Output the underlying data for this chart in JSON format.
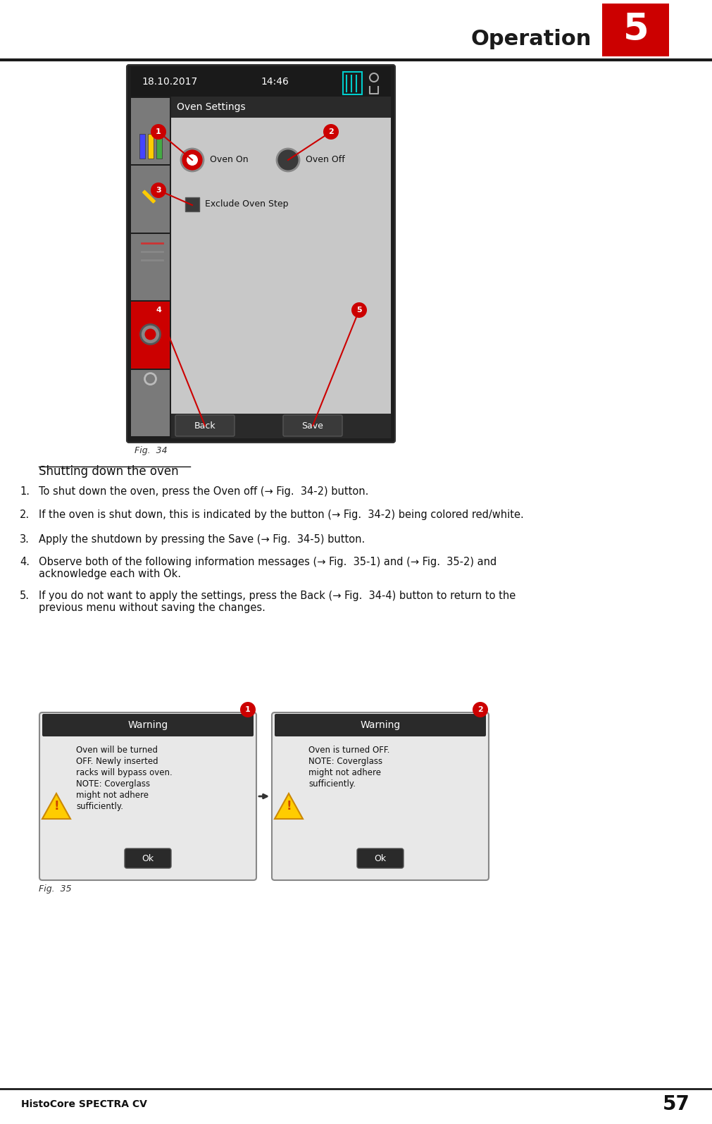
{
  "page_bg": "#ffffff",
  "header_text": "Operation",
  "header_num": "5",
  "header_bg": "#cc0000",
  "header_line_color": "#1a1a1a",
  "footer_text": "HistoCore SPECTRA CV",
  "footer_num": "57",
  "fig34_label": "Fig.  34",
  "fig35_label": "Fig.  35",
  "section_title": "Shutting down the oven",
  "steps": [
    "To shut down the oven, press the ⁠Oven off⁠ (→ Fig.  34-2) button.",
    "If the oven is shut down, this is indicated by the button (→ Fig.  34-2) being colored red/white.",
    "Apply the shutdown by pressing the ⁠Save⁠ (→ Fig.  34-5) button.",
    "Observe both of the following information messages (→ Fig.  35-1) and (→ Fig.  35-2) and acknowledge each with ⁠Ok⁠.",
    "If you do not want to apply the settings, press the ⁠Back⁠ (→ Fig.  34-4) button to return to the previous menu without saving the changes."
  ],
  "steps_underline": [
    {
      "word": "Oven off",
      "step": 0
    },
    {
      "word": "Save",
      "step": 2
    },
    {
      "word": "Ok",
      "step": 3
    },
    {
      "word": "Back",
      "step": 4
    }
  ],
  "screen_bg": "#2a2a2a",
  "screen_content_bg": "#d4d4d4",
  "screen_header_bg": "#2a2a2a",
  "screen_header_text": "Oven Settings",
  "screen_date": "18.10.2017",
  "screen_time": "14:46",
  "sidebar_bg": "#8a8a8a",
  "sidebar_active_bg": "#cc0000",
  "callout_color": "#cc0000",
  "bottom_btn_bg": "#2a2a2a",
  "bottom_btn_text_color": "#ffffff",
  "warning_bg": "#f0f0f0",
  "warning_header_bg": "#2a2a2a",
  "warning_header_text_color": "#ffffff",
  "ok_btn_bg": "#2a2a2a",
  "ok_btn_text": "Ok"
}
